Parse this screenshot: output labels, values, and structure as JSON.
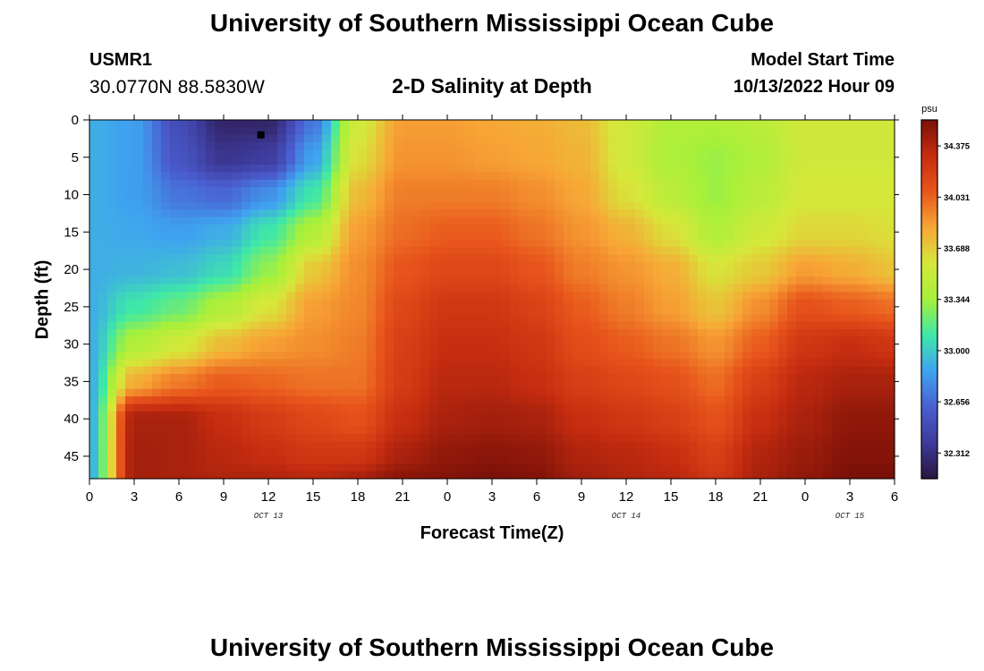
{
  "page": {
    "title_top": "University of Southern Mississippi Ocean Cube",
    "title_bottom": "University of Southern Mississippi Ocean Cube",
    "station_id": "USMR1",
    "coordinates": "30.0770N  88.5830W",
    "model_start_label": "Model Start Time",
    "model_start_value": "10/13/2022 Hour 09"
  },
  "colors": {
    "scale": [
      "#2a1540",
      "#3d3a99",
      "#4a5fd0",
      "#3fa3f0",
      "#3ee8a8",
      "#a6f03a",
      "#d6e83a",
      "#f7a636",
      "#e8561c",
      "#c62d10",
      "#7a1008"
    ]
  },
  "chart_data": {
    "type": "heatmap",
    "title": "2-D Salinity at Depth",
    "xlabel": "Forecast Time(Z)",
    "ylabel": "Depth (ft)",
    "x_tick_labels": [
      "0",
      "3",
      "6",
      "9",
      "12",
      "15",
      "18",
      "21",
      "0",
      "3",
      "6",
      "9",
      "12",
      "15",
      "18",
      "21",
      "0",
      "3",
      "6"
    ],
    "x_range_hours": [
      0,
      54
    ],
    "y_ticks": [
      0,
      5,
      10,
      15,
      20,
      25,
      30,
      35,
      40,
      45
    ],
    "y_range": [
      0,
      48
    ],
    "day_labels": [
      {
        "text": "OCT 13",
        "hour": 12
      },
      {
        "text": "OCT 14",
        "hour": 36
      },
      {
        "text": "OCT 15",
        "hour": 51
      }
    ],
    "colorbar": {
      "unit": "psu",
      "min": 32.14,
      "max": 34.55,
      "tick_labels": [
        "34.375",
        "34.031",
        "33.688",
        "33.344",
        "33.000",
        "32.656",
        "32.312"
      ]
    },
    "marker": {
      "hour": 11.5,
      "depth": 2
    },
    "salinity_grid": {
      "hours": [
        0,
        3,
        6,
        9,
        12,
        15,
        18,
        21,
        24,
        27,
        30,
        33,
        36,
        39,
        42,
        45,
        48,
        51,
        54
      ],
      "depths": [
        0,
        5,
        10,
        15,
        20,
        25,
        30,
        35,
        40,
        45,
        48
      ],
      "values": [
        [
          32.9,
          32.9,
          32.9,
          32.9,
          32.9,
          32.9,
          32.9,
          32.9,
          32.9,
          32.9,
          32.9
        ],
        [
          32.85,
          32.85,
          32.85,
          32.88,
          32.92,
          33.1,
          33.4,
          33.8,
          34.4,
          34.42,
          34.42
        ],
        [
          32.5,
          32.55,
          32.7,
          32.85,
          32.95,
          33.2,
          33.55,
          33.95,
          34.4,
          34.4,
          34.4
        ],
        [
          32.25,
          32.35,
          32.65,
          32.9,
          33.05,
          33.4,
          33.75,
          34.05,
          34.3,
          34.35,
          34.38
        ],
        [
          32.25,
          32.4,
          32.8,
          33.1,
          33.3,
          33.6,
          33.85,
          34.02,
          34.22,
          34.3,
          34.38
        ],
        [
          32.7,
          32.85,
          33.1,
          33.4,
          33.7,
          33.85,
          33.9,
          33.98,
          34.15,
          34.25,
          34.35
        ],
        [
          33.55,
          33.62,
          33.75,
          33.85,
          33.9,
          33.92,
          33.95,
          33.98,
          34.1,
          34.25,
          34.4
        ],
        [
          33.85,
          33.88,
          33.95,
          34.0,
          34.08,
          34.15,
          34.2,
          34.22,
          34.3,
          34.4,
          34.5
        ],
        [
          33.85,
          33.88,
          33.95,
          34.05,
          34.15,
          34.25,
          34.3,
          34.35,
          34.4,
          34.48,
          34.52
        ],
        [
          33.82,
          33.85,
          33.95,
          34.05,
          34.15,
          34.25,
          34.3,
          34.35,
          34.42,
          34.5,
          34.55
        ],
        [
          33.8,
          33.82,
          33.9,
          33.98,
          34.08,
          34.18,
          34.25,
          34.3,
          34.4,
          34.48,
          34.52
        ],
        [
          33.75,
          33.78,
          33.82,
          33.88,
          33.95,
          34.05,
          34.12,
          34.2,
          34.3,
          34.38,
          34.42
        ],
        [
          33.55,
          33.55,
          33.62,
          33.78,
          33.88,
          33.95,
          34.05,
          34.15,
          34.25,
          34.35,
          34.38
        ],
        [
          33.4,
          33.38,
          33.45,
          33.62,
          33.8,
          33.85,
          33.98,
          34.1,
          34.2,
          34.3,
          34.35
        ],
        [
          33.4,
          33.32,
          33.32,
          33.4,
          33.6,
          33.72,
          33.88,
          34.0,
          34.1,
          34.2,
          34.25
        ],
        [
          33.45,
          33.4,
          33.45,
          33.55,
          33.7,
          33.9,
          34.05,
          34.2,
          34.3,
          34.38,
          34.4
        ],
        [
          33.55,
          33.55,
          33.58,
          33.65,
          33.85,
          34.1,
          34.25,
          34.35,
          34.4,
          34.45,
          34.48
        ],
        [
          33.55,
          33.55,
          33.58,
          33.65,
          33.8,
          34.05,
          34.3,
          34.4,
          34.48,
          34.52,
          34.55
        ],
        [
          33.55,
          33.55,
          33.58,
          33.62,
          33.72,
          34.0,
          34.25,
          34.4,
          34.48,
          34.52,
          34.55
        ]
      ]
    }
  }
}
